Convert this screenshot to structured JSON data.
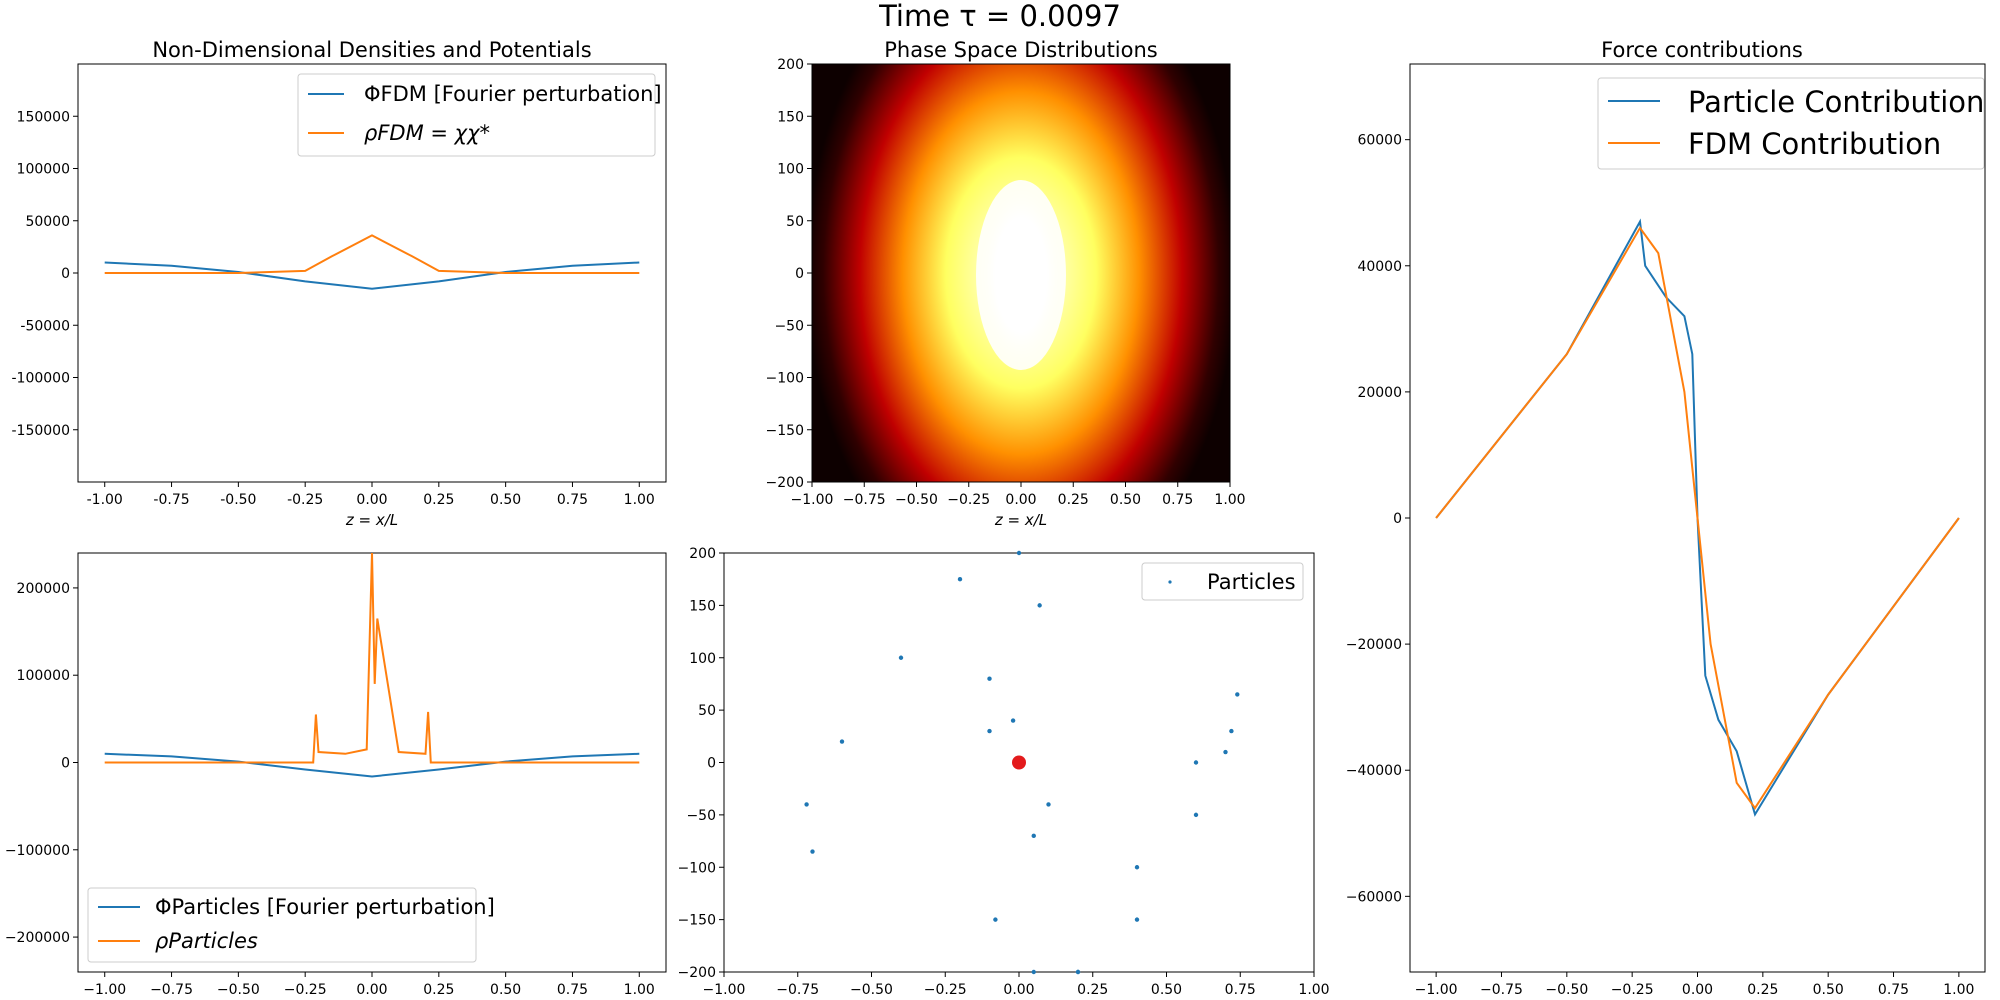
{
  "suptitle": "Time τ = 0.0097",
  "colors": {
    "blue": "#1f77b4",
    "orange": "#ff7f0e",
    "red": "#e31a1c"
  },
  "panels": {
    "densities": {
      "title": "Non-Dimensional Densities and Potentials",
      "xlabel": "z = x/L",
      "xlim": [
        -1.1,
        1.1
      ],
      "ylim": [
        -200000,
        200000
      ],
      "xticks": [
        "-1.00",
        "-0.75",
        "-0.50",
        "-0.25",
        "0.00",
        "0.25",
        "0.50",
        "0.75",
        "1.00"
      ],
      "yticks": [
        "150000",
        "100000",
        "50000",
        "0",
        "-50000",
        "-100000",
        "-150000"
      ],
      "legend": [
        "ΦFDM [Fourier perturbation]",
        "ρFDM = χχ*"
      ]
    },
    "phase_space": {
      "title": "Phase Space Distributions",
      "xlabel": "z = x/L",
      "xlim": [
        -1,
        1
      ],
      "ylim": [
        -200,
        200
      ],
      "xticks": [
        "−1.00",
        "−0.75",
        "−0.50",
        "−0.25",
        "0.00",
        "0.25",
        "0.50",
        "0.75",
        "1.00"
      ],
      "yticks": [
        "200",
        "150",
        "100",
        "50",
        "0",
        "−50",
        "−100",
        "−150",
        "−200"
      ]
    },
    "forces": {
      "title": "Force contributions",
      "xlim": [
        -1.1,
        1.1
      ],
      "ylim": [
        -72000,
        72000
      ],
      "xticks": [
        "−1.00",
        "−0.75",
        "−0.50",
        "−0.25",
        "0.00",
        "0.25",
        "0.50",
        "0.75",
        "1.00"
      ],
      "yticks": [
        "60000",
        "40000",
        "20000",
        "0",
        "−20000",
        "−40000",
        "−60000"
      ],
      "legend": [
        "Particle Contribution",
        "FDM Contribution"
      ]
    },
    "particle_density": {
      "xlim": [
        -1.1,
        1.1
      ],
      "ylim": [
        -240000,
        240000
      ],
      "xticks": [
        "−1.00",
        "−0.75",
        "−0.50",
        "−0.25",
        "0.00",
        "0.25",
        "0.50",
        "0.75",
        "1.00"
      ],
      "yticks": [
        "200000",
        "100000",
        "0",
        "−100000",
        "−200000"
      ],
      "legend": [
        "ΦParticles [Fourier perturbation]",
        "ρParticles"
      ]
    },
    "particles": {
      "xlim": [
        -1,
        1
      ],
      "ylim": [
        -200,
        200
      ],
      "xticks": [
        "−1.00",
        "−0.75",
        "−0.50",
        "−0.25",
        "0.00",
        "0.25",
        "0.50",
        "0.75",
        "1.00"
      ],
      "yticks": [
        "200",
        "150",
        "100",
        "50",
        "0",
        "−50",
        "−100",
        "−150",
        "−200"
      ],
      "legend": [
        "Particles"
      ]
    }
  },
  "chart_data": [
    {
      "type": "line",
      "title": "Non-Dimensional Densities and Potentials",
      "xlabel": "z = x/L",
      "series": [
        {
          "name": "ΦFDM [Fourier perturbation]",
          "x": [
            -1,
            -0.75,
            -0.5,
            -0.25,
            0,
            0.25,
            0.5,
            0.75,
            1
          ],
          "y": [
            10000,
            7000,
            1000,
            -8000,
            -15000,
            -8000,
            1000,
            7000,
            10000
          ]
        },
        {
          "name": "ρFDM = χχ*",
          "x": [
            -1,
            -0.5,
            -0.25,
            -0.15,
            0,
            0.15,
            0.25,
            0.5,
            1
          ],
          "y": [
            0,
            0,
            2000,
            16000,
            36000,
            16000,
            2000,
            0,
            0
          ]
        }
      ]
    },
    {
      "type": "heatmap",
      "title": "Phase Space Distributions",
      "xlabel": "z = x/L",
      "xlim": [
        -1,
        1
      ],
      "ylim": [
        -200,
        200
      ],
      "colormap": "hot",
      "peak": {
        "x": 0,
        "y": 0
      }
    },
    {
      "type": "line",
      "title": "Force contributions",
      "series": [
        {
          "name": "Particle Contribution",
          "x": [
            -1,
            -0.5,
            -0.22,
            -0.2,
            -0.12,
            -0.05,
            -0.02,
            0,
            0.03,
            0.08,
            0.15,
            0.22,
            0.5,
            1
          ],
          "y": [
            0,
            26000,
            47000,
            40000,
            35000,
            32000,
            26000,
            0,
            -25000,
            -32000,
            -37000,
            -47000,
            -28000,
            0
          ]
        },
        {
          "name": "FDM Contribution",
          "x": [
            -1,
            -0.5,
            -0.22,
            -0.15,
            -0.05,
            0,
            0.05,
            0.15,
            0.22,
            0.5,
            1
          ],
          "y": [
            0,
            26000,
            46000,
            42000,
            20000,
            0,
            -20000,
            -42000,
            -46000,
            -28000,
            0
          ]
        }
      ]
    },
    {
      "type": "line",
      "series": [
        {
          "name": "ΦParticles [Fourier perturbation]",
          "x": [
            -1,
            -0.75,
            -0.5,
            -0.25,
            0,
            0.25,
            0.5,
            0.75,
            1
          ],
          "y": [
            10000,
            7000,
            1000,
            -8000,
            -16000,
            -8000,
            1000,
            7000,
            10000
          ]
        },
        {
          "name": "ρParticles",
          "x": [
            -1,
            -0.22,
            -0.21,
            -0.2,
            -0.1,
            -0.02,
            0,
            0.01,
            0.02,
            0.1,
            0.2,
            0.21,
            0.22,
            1
          ],
          "y": [
            0,
            0,
            55000,
            12000,
            10000,
            15000,
            240000,
            90000,
            165000,
            12000,
            10000,
            58000,
            0,
            0
          ]
        }
      ]
    },
    {
      "type": "scatter",
      "series": [
        {
          "name": "Particles",
          "x": [
            -0.7,
            -0.72,
            -0.6,
            -0.4,
            -0.2,
            -0.1,
            -0.02,
            0,
            0.05,
            0.1,
            0.07,
            0,
            -0.1,
            -0.08,
            0.05,
            0.2,
            0.4,
            0.6,
            0.72,
            0.74,
            0.7,
            0.6,
            0.4,
            0.2
          ],
          "y": [
            -85,
            -40,
            20,
            100,
            175,
            80,
            40,
            0,
            -70,
            -40,
            150,
            200,
            30,
            -150,
            -200,
            -200,
            -100,
            0,
            30,
            65,
            10,
            -50,
            -150,
            -200
          ]
        }
      ],
      "marker": {
        "x": 0,
        "y": 0
      }
    }
  ]
}
